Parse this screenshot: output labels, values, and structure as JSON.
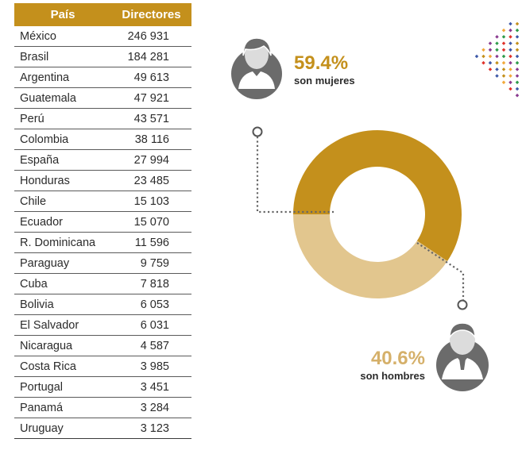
{
  "table": {
    "headers": [
      "País",
      "Directores"
    ],
    "rows": [
      {
        "country": "México",
        "value": "246 931"
      },
      {
        "country": "Brasil",
        "value": "184 281"
      },
      {
        "country": "Argentina",
        "value": "49 613"
      },
      {
        "country": "Guatemala",
        "value": "47 921"
      },
      {
        "country": "Perú",
        "value": "43 571"
      },
      {
        "country": "Colombia",
        "value": "38 116"
      },
      {
        "country": "España",
        "value": "27 994"
      },
      {
        "country": "Honduras",
        "value": "23 485"
      },
      {
        "country": "Chile",
        "value": "15 103"
      },
      {
        "country": "Ecuador",
        "value": "15 070"
      },
      {
        "country": "R. Dominicana",
        "value": "11 596"
      },
      {
        "country": "Paraguay",
        "value": "9 759"
      },
      {
        "country": "Cuba",
        "value": "7 818"
      },
      {
        "country": "Bolivia",
        "value": "6 053"
      },
      {
        "country": "El Salvador",
        "value": "6 031"
      },
      {
        "country": "Nicaragua",
        "value": "4 587"
      },
      {
        "country": "Costa Rica",
        "value": "3 985"
      },
      {
        "country": "Portugal",
        "value": "3 451"
      },
      {
        "country": "Panamá",
        "value": "3 284"
      },
      {
        "country": "Uruguay",
        "value": "3 123"
      }
    ]
  },
  "chart_data": {
    "type": "pie",
    "variant": "donut",
    "slices": [
      {
        "label": "son mujeres",
        "value": 59.4,
        "display": "59.4%",
        "color": "#c4901c",
        "icon": "woman-icon"
      },
      {
        "label": "son hombres",
        "value": 40.6,
        "display": "40.6%",
        "color": "#e2c68e",
        "icon": "man-icon"
      }
    ]
  },
  "colors": {
    "header_bg": "#c4901c",
    "women": "#c4901c",
    "men": "#e2c68e",
    "icon_gray": "#6b6b6b",
    "pct_women": "#c4901c",
    "pct_men": "#d5b06a"
  },
  "decoration": {
    "dot_palette": [
      "#c4901c",
      "#3d58a8",
      "#e0322b",
      "#2e9b4a",
      "#8a3b8f",
      "#f2a93b"
    ]
  }
}
